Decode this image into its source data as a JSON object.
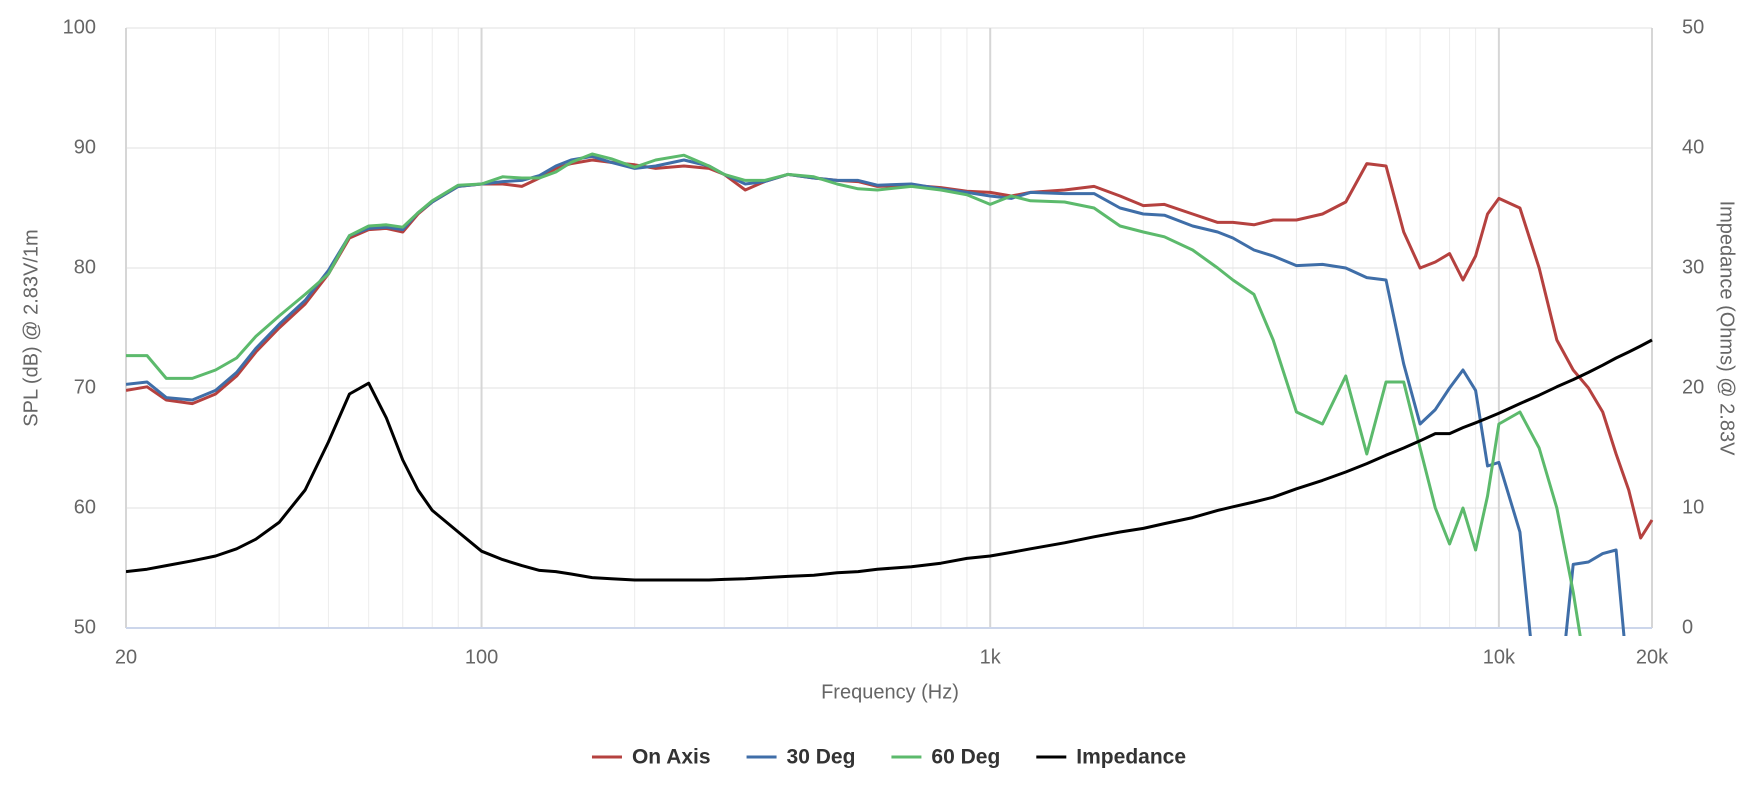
{
  "chart_data": {
    "type": "line",
    "x_label": "Frequency (Hz)",
    "y_label": "SPL (dB) @ 2.83V/1m",
    "y2_label": "Impedance (Ohms) @ 2.83V",
    "x_scale": "log",
    "grid": true,
    "legend": "bottom",
    "xlim": [
      20,
      20000
    ],
    "xticks": [
      20,
      100,
      {
        "value": 1000,
        "label": "1k"
      },
      {
        "value": 10000,
        "label": "10k"
      },
      {
        "value": 20000,
        "label": "20k"
      }
    ],
    "xminorticks": [
      30,
      40,
      50,
      60,
      70,
      80,
      90,
      200,
      300,
      400,
      500,
      600,
      700,
      800,
      900,
      2000,
      3000,
      4000,
      5000,
      6000,
      7000,
      8000,
      9000
    ],
    "ylim": [
      50,
      100
    ],
    "yticks": [
      50,
      60,
      70,
      80,
      90,
      100
    ],
    "y2lim": [
      0,
      50
    ],
    "y2ticks": [
      0,
      10,
      20,
      30,
      40,
      50
    ],
    "x": [
      20,
      22,
      24,
      27,
      30,
      33,
      36,
      40,
      45,
      50,
      55,
      60,
      65,
      70,
      75,
      80,
      90,
      100,
      110,
      120,
      130,
      140,
      150,
      165,
      180,
      200,
      220,
      250,
      280,
      300,
      330,
      360,
      400,
      450,
      500,
      550,
      600,
      700,
      800,
      900,
      1000,
      1100,
      1200,
      1400,
      1600,
      1800,
      2000,
      2200,
      2500,
      2800,
      3000,
      3300,
      3600,
      4000,
      4500,
      5000,
      5500,
      6000,
      6500,
      7000,
      7500,
      8000,
      8500,
      9000,
      9500,
      10000,
      11000,
      12000,
      13000,
      14000,
      15000,
      16000,
      17000,
      18000,
      19000,
      20000
    ],
    "series": [
      {
        "name": "On Axis",
        "color": "#b5413f",
        "values": [
          69.8,
          70.1,
          69,
          68.7,
          69.5,
          71,
          73,
          75,
          77,
          79.5,
          82.5,
          83.2,
          83.3,
          83,
          84.5,
          85.5,
          86.8,
          87,
          87,
          86.8,
          87.5,
          88.3,
          88.7,
          89,
          88.8,
          88.6,
          88.3,
          88.5,
          88.3,
          87.8,
          86.5,
          87.2,
          87.8,
          87.5,
          87.3,
          87.2,
          86.8,
          86.9,
          86.7,
          86.4,
          86.3,
          86,
          86.3,
          86.5,
          86.8,
          86,
          85.2,
          85.3,
          84.5,
          83.8,
          83.8,
          83.6,
          84,
          84,
          84.5,
          85.5,
          88.7,
          88.5,
          83,
          80,
          80.5,
          81.2,
          79,
          81,
          84.5,
          85.8,
          85,
          80,
          74,
          71.5,
          70,
          68,
          64.5,
          61.5,
          57.5,
          59
        ]
      },
      {
        "name": "30 Deg",
        "color": "#3f6ea8",
        "values": [
          70.3,
          70.5,
          69.2,
          69,
          69.8,
          71.3,
          73.3,
          75.3,
          77.3,
          79.8,
          82.7,
          83.3,
          83.4,
          83.2,
          84.6,
          85.5,
          86.8,
          87,
          87.2,
          87.3,
          87.7,
          88.5,
          89,
          89.3,
          88.8,
          88.3,
          88.5,
          89,
          88.5,
          87.8,
          87,
          87.2,
          87.8,
          87.5,
          87.3,
          87.3,
          86.9,
          87,
          86.6,
          86.3,
          86,
          85.8,
          86.3,
          86.2,
          86.2,
          85,
          84.5,
          84.4,
          83.5,
          83,
          82.5,
          81.5,
          81,
          80.2,
          80.3,
          80,
          79.2,
          79,
          72,
          67,
          68.2,
          70,
          71.5,
          69.8,
          63.5,
          63.8,
          58,
          42,
          42,
          55.3,
          55.5,
          56.2,
          56.5,
          45,
          null,
          null
        ]
      },
      {
        "name": "60 Deg",
        "color": "#5cba6c",
        "values": [
          72.7,
          72.7,
          70.8,
          70.8,
          71.5,
          72.5,
          74.3,
          76,
          77.8,
          79.5,
          82.7,
          83.5,
          83.6,
          83.4,
          84.6,
          85.6,
          86.9,
          87,
          87.6,
          87.5,
          87.5,
          88,
          88.8,
          89.5,
          89.1,
          88.4,
          89,
          89.4,
          88.5,
          87.8,
          87.3,
          87.3,
          87.8,
          87.6,
          87,
          86.6,
          86.5,
          86.8,
          86.5,
          86.1,
          85.3,
          86,
          85.6,
          85.5,
          85,
          83.5,
          83,
          82.6,
          81.5,
          80,
          79,
          77.8,
          74,
          68,
          67,
          71,
          64.5,
          70.5,
          70.5,
          65,
          60,
          57,
          60,
          56.5,
          61,
          67,
          68,
          65,
          60,
          53,
          45,
          null,
          null,
          null,
          null,
          null
        ]
      },
      {
        "name": "Impedance",
        "color": "#000000",
        "axis": "y2",
        "values": [
          4.7,
          4.9,
          5.2,
          5.6,
          6,
          6.6,
          7.4,
          8.8,
          11.5,
          15.5,
          19.5,
          20.4,
          17.5,
          14,
          11.5,
          9.8,
          8,
          6.4,
          5.7,
          5.2,
          4.8,
          4.7,
          4.5,
          4.2,
          4.1,
          4,
          4,
          4,
          4,
          4.05,
          4.1,
          4.2,
          4.3,
          4.4,
          4.6,
          4.7,
          4.9,
          5.1,
          5.4,
          5.8,
          6,
          6.3,
          6.6,
          7.1,
          7.6,
          8,
          8.3,
          8.7,
          9.2,
          9.8,
          10.1,
          10.5,
          10.9,
          11.6,
          12.3,
          13,
          13.7,
          14.4,
          15,
          15.6,
          16.2,
          16.2,
          16.7,
          17.1,
          17.5,
          17.9,
          18.7,
          19.4,
          20.1,
          20.7,
          21.3,
          21.9,
          22.5,
          23,
          23.5,
          24
        ]
      }
    ]
  }
}
